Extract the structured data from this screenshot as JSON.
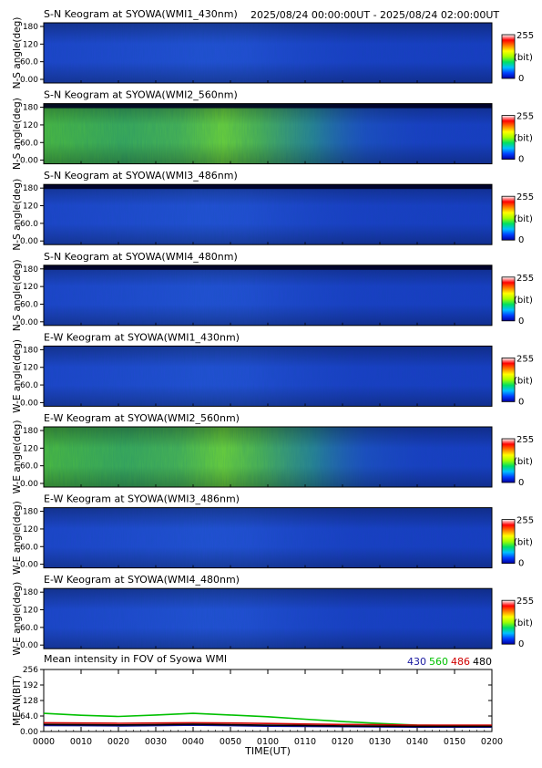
{
  "header": {
    "time_range": "2025/08/24 00:00:00UT - 2025/08/24 02:00:00UT"
  },
  "colorbar": {
    "max_label": "255",
    "unit_label": "(bit)",
    "min_label": "0",
    "colors": [
      "#0000a0",
      "#0040ff",
      "#00c0ff",
      "#00e060",
      "#a0ff00",
      "#ffff00",
      "#ff8000",
      "#ff0000",
      "#ffffff"
    ]
  },
  "colors": {
    "keogram_base": "#1a3ec8",
    "keogram_top_band": "#000020",
    "green_emission": "#3ac84a"
  },
  "chart_data": [
    {
      "type": "heatmap",
      "title": "S-N Keogram at SYOWA(WMI1_430nm)",
      "ylabel": "N-S angle(deg)",
      "y_ticks": [
        "180",
        "120",
        "60.0",
        "0.00"
      ],
      "ylim": [
        0,
        180
      ],
      "intensity": "low",
      "dark_band_top": false,
      "colorbar_range": [
        0,
        255
      ]
    },
    {
      "type": "heatmap",
      "title": "S-N Keogram at SYOWA(WMI2_560nm)",
      "ylabel": "N-S angle(deg)",
      "y_ticks": [
        "180",
        "120",
        "60.0",
        "0.00"
      ],
      "ylim": [
        0,
        180
      ],
      "intensity": "green",
      "dark_band_top": true,
      "colorbar_range": [
        0,
        255
      ]
    },
    {
      "type": "heatmap",
      "title": "S-N Keogram at SYOWA(WMI3_486nm)",
      "ylabel": "N-S angle(deg)",
      "y_ticks": [
        "180",
        "120",
        "60.0",
        "0.00"
      ],
      "ylim": [
        0,
        180
      ],
      "intensity": "low",
      "dark_band_top": true,
      "colorbar_range": [
        0,
        255
      ]
    },
    {
      "type": "heatmap",
      "title": "S-N Keogram at SYOWA(WMI4_480nm)",
      "ylabel": "N-S angle(deg)",
      "y_ticks": [
        "180",
        "120",
        "60.0",
        "0.00"
      ],
      "ylim": [
        0,
        180
      ],
      "intensity": "low",
      "dark_band_top": true,
      "colorbar_range": [
        0,
        255
      ]
    },
    {
      "type": "heatmap",
      "title": "E-W Keogram at SYOWA(WMI1_430nm)",
      "ylabel": "W-E angle(deg)",
      "y_ticks": [
        "180",
        "120",
        "60.0",
        "0.00"
      ],
      "ylim": [
        0,
        180
      ],
      "intensity": "low",
      "dark_band_top": false,
      "colorbar_range": [
        0,
        255
      ]
    },
    {
      "type": "heatmap",
      "title": "E-W Keogram at SYOWA(WMI2_560nm)",
      "ylabel": "W-E angle(deg)",
      "y_ticks": [
        "180",
        "120",
        "60.0",
        "0.00"
      ],
      "ylim": [
        0,
        180
      ],
      "intensity": "green",
      "dark_band_top": false,
      "colorbar_range": [
        0,
        255
      ]
    },
    {
      "type": "heatmap",
      "title": "E-W Keogram at SYOWA(WMI3_486nm)",
      "ylabel": "W-E angle(deg)",
      "y_ticks": [
        "180",
        "120",
        "60.0",
        "0.00"
      ],
      "ylim": [
        0,
        180
      ],
      "intensity": "low",
      "dark_band_top": false,
      "colorbar_range": [
        0,
        255
      ]
    },
    {
      "type": "heatmap",
      "title": "E-W Keogram at SYOWA(WMI4_480nm)",
      "ylabel": "W-E angle(deg)",
      "y_ticks": [
        "180",
        "120",
        "60.0",
        "0.00"
      ],
      "ylim": [
        0,
        180
      ],
      "intensity": "low",
      "dark_band_top": false,
      "colorbar_range": [
        0,
        255
      ]
    },
    {
      "type": "line",
      "title": "Mean intensity in FOV of Syowa WMI",
      "ylabel": "MEAN(BIT)",
      "xlabel": "TIME(UT)",
      "x_ticks": [
        "0000",
        "0010",
        "0020",
        "0030",
        "0040",
        "0050",
        "0100",
        "0110",
        "0120",
        "0130",
        "0140",
        "0150",
        "0200"
      ],
      "y_ticks": [
        "256",
        "192",
        "128",
        "64.0",
        "0.00"
      ],
      "ylim": [
        0,
        256
      ],
      "xlim": [
        0,
        120
      ],
      "series": [
        {
          "name": "430",
          "color": "#1a1aa0",
          "x": [
            0,
            10,
            20,
            30,
            40,
            50,
            60,
            70,
            80,
            90,
            100,
            110,
            120
          ],
          "values": [
            25,
            24,
            23,
            24,
            26,
            24,
            22,
            21,
            20,
            19,
            18,
            18,
            18
          ]
        },
        {
          "name": "560",
          "color": "#00c000",
          "x": [
            0,
            10,
            20,
            30,
            40,
            50,
            60,
            70,
            80,
            90,
            100,
            110,
            120
          ],
          "values": [
            75,
            67,
            62,
            68,
            75,
            68,
            61,
            51,
            41,
            33,
            26,
            24,
            24
          ]
        },
        {
          "name": "486",
          "color": "#d00000",
          "x": [
            0,
            10,
            20,
            30,
            40,
            50,
            60,
            70,
            80,
            90,
            100,
            110,
            120
          ],
          "values": [
            36,
            35,
            34,
            35,
            36,
            35,
            33,
            31,
            29,
            28,
            26,
            26,
            26
          ]
        },
        {
          "name": "480",
          "color": "#000000",
          "x": [
            0,
            10,
            20,
            30,
            40,
            50,
            60,
            70,
            80,
            90,
            100,
            110,
            120
          ],
          "values": [
            29,
            28,
            27,
            28,
            30,
            28,
            26,
            25,
            23,
            22,
            21,
            21,
            21
          ]
        }
      ]
    }
  ]
}
